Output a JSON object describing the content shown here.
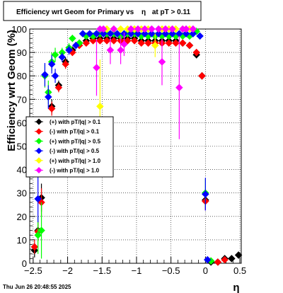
{
  "chart_data": {
    "type": "scatter",
    "title": "Efficiency wrt Geom for Primary vs",
    "title_symbol": "η",
    "title_suffix": "at pT > 0.11",
    "xlabel": "η",
    "ylabel": "Efficiency wrt Geom (%)",
    "xlim": [
      -2.55,
      0.52
    ],
    "ylim": [
      0,
      100
    ],
    "xticks": [
      {
        "value": -2.5,
        "label": "−2.5"
      },
      {
        "value": -2.0,
        "label": "−2"
      },
      {
        "value": -1.5,
        "label": "−1.5"
      },
      {
        "value": -1.0,
        "label": "−1"
      },
      {
        "value": -0.5,
        "label": "−0.5"
      },
      {
        "value": 0.0,
        "label": "0"
      },
      {
        "value": 0.5,
        "label": "0.5"
      }
    ],
    "yticks": [
      0,
      10,
      20,
      30,
      40,
      50,
      60,
      70,
      80,
      90,
      100
    ],
    "grid": true,
    "legend_position": "left-middle",
    "timestamp": "Thu Jun 26 20:48:55 2025",
    "series": [
      {
        "name": "(+) with pT/|q| > 0.1",
        "color": "#000000",
        "points": [
          {
            "x": -2.48,
            "y": 5.5,
            "err": 3
          },
          {
            "x": -2.43,
            "y": 14,
            "err": 4
          },
          {
            "x": -2.38,
            "y": 28,
            "err": 6
          },
          {
            "x": -2.23,
            "y": 67,
            "err": 3
          },
          {
            "x": -2.13,
            "y": 76,
            "err": 2
          },
          {
            "x": -2.03,
            "y": 86,
            "err": 2
          },
          {
            "x": -1.93,
            "y": 91,
            "err": 1.5
          },
          {
            "x": -1.83,
            "y": 94,
            "err": 1
          },
          {
            "x": -1.73,
            "y": 95,
            "err": 1
          },
          {
            "x": -1.63,
            "y": 96,
            "err": 1
          },
          {
            "x": -1.53,
            "y": 96,
            "err": 1
          },
          {
            "x": -1.43,
            "y": 96,
            "err": 1
          },
          {
            "x": -1.33,
            "y": 96,
            "err": 1
          },
          {
            "x": -1.23,
            "y": 96,
            "err": 1
          },
          {
            "x": -1.13,
            "y": 96,
            "err": 1
          },
          {
            "x": -1.03,
            "y": 96,
            "err": 1
          },
          {
            "x": -0.93,
            "y": 95,
            "err": 1
          },
          {
            "x": -0.83,
            "y": 95,
            "err": 1
          },
          {
            "x": -0.73,
            "y": 95,
            "err": 1
          },
          {
            "x": -0.63,
            "y": 95,
            "err": 1
          },
          {
            "x": -0.53,
            "y": 95,
            "err": 1
          },
          {
            "x": -0.43,
            "y": 95,
            "err": 1
          },
          {
            "x": -0.33,
            "y": 94,
            "err": 1
          },
          {
            "x": -0.23,
            "y": 93,
            "err": 1
          },
          {
            "x": -0.13,
            "y": 89,
            "err": 1.5
          },
          {
            "x": -0.05,
            "y": 80,
            "err": 1.5
          },
          {
            "x": 0.0,
            "y": 27,
            "err": 4
          },
          {
            "x": 0.08,
            "y": 0.5,
            "err": 0.5
          },
          {
            "x": 0.18,
            "y": 0.5,
            "err": 0.5
          },
          {
            "x": 0.28,
            "y": 2,
            "err": 1
          },
          {
            "x": 0.38,
            "y": 2,
            "err": 1
          },
          {
            "x": 0.48,
            "y": 3.5,
            "err": 1.5
          }
        ]
      },
      {
        "name": "(-) with pT/|q| > 0.1",
        "color": "#ff0000",
        "points": [
          {
            "x": -2.48,
            "y": 7,
            "err": 3
          },
          {
            "x": -2.43,
            "y": 13.5,
            "err": 4
          },
          {
            "x": -2.38,
            "y": 26,
            "err": 6
          },
          {
            "x": -2.23,
            "y": 66,
            "err": 3
          },
          {
            "x": -2.13,
            "y": 75,
            "err": 2
          },
          {
            "x": -2.03,
            "y": 85,
            "err": 2
          },
          {
            "x": -1.93,
            "y": 90,
            "err": 1.5
          },
          {
            "x": -1.83,
            "y": 93,
            "err": 1
          },
          {
            "x": -1.73,
            "y": 94,
            "err": 1
          },
          {
            "x": -1.63,
            "y": 95,
            "err": 1
          },
          {
            "x": -1.53,
            "y": 95,
            "err": 1
          },
          {
            "x": -1.43,
            "y": 95,
            "err": 1
          },
          {
            "x": -1.33,
            "y": 95,
            "err": 1
          },
          {
            "x": -1.23,
            "y": 95,
            "err": 1
          },
          {
            "x": -1.13,
            "y": 95,
            "err": 1
          },
          {
            "x": -1.03,
            "y": 95,
            "err": 1
          },
          {
            "x": -0.93,
            "y": 94,
            "err": 1
          },
          {
            "x": -0.83,
            "y": 94,
            "err": 1
          },
          {
            "x": -0.73,
            "y": 94,
            "err": 1
          },
          {
            "x": -0.63,
            "y": 94,
            "err": 1
          },
          {
            "x": -0.53,
            "y": 94,
            "err": 1
          },
          {
            "x": -0.43,
            "y": 94,
            "err": 1
          },
          {
            "x": -0.33,
            "y": 94,
            "err": 1
          },
          {
            "x": -0.23,
            "y": 93,
            "err": 1
          },
          {
            "x": -0.13,
            "y": 90,
            "err": 1.5
          },
          {
            "x": -0.05,
            "y": 80,
            "err": 1.5
          },
          {
            "x": 0.0,
            "y": 26.5,
            "err": 4
          },
          {
            "x": 0.08,
            "y": 1,
            "err": 0.5
          },
          {
            "x": 0.18,
            "y": 0.5,
            "err": 0.5
          },
          {
            "x": 0.28,
            "y": 1.5,
            "err": 1
          }
        ]
      },
      {
        "name": "(+) with pT/|q| > 0.5",
        "color": "#00ff00",
        "points": [
          {
            "x": -2.43,
            "y": 12,
            "err": 8
          },
          {
            "x": -2.38,
            "y": 14,
            "err": 12
          },
          {
            "x": -2.33,
            "y": 80,
            "err": 5
          },
          {
            "x": -2.28,
            "y": 73,
            "err": 5
          },
          {
            "x": -2.23,
            "y": 86,
            "err": 4
          },
          {
            "x": -2.18,
            "y": 89,
            "err": 3
          },
          {
            "x": -2.08,
            "y": 90,
            "err": 2
          },
          {
            "x": -1.98,
            "y": 92,
            "err": 2
          },
          {
            "x": -1.93,
            "y": 96,
            "err": 1.5
          },
          {
            "x": -1.83,
            "y": 94,
            "err": 1.5
          },
          {
            "x": -1.73,
            "y": 97,
            "err": 1
          },
          {
            "x": -1.63,
            "y": 97,
            "err": 1
          },
          {
            "x": -1.53,
            "y": 98,
            "err": 1
          },
          {
            "x": -1.43,
            "y": 98,
            "err": 1
          },
          {
            "x": -1.33,
            "y": 98,
            "err": 1
          },
          {
            "x": -1.23,
            "y": 97,
            "err": 1
          },
          {
            "x": -1.13,
            "y": 98,
            "err": 1
          },
          {
            "x": -1.03,
            "y": 98,
            "err": 1
          },
          {
            "x": -0.93,
            "y": 97,
            "err": 1
          },
          {
            "x": -0.83,
            "y": 97,
            "err": 1
          },
          {
            "x": -0.73,
            "y": 97,
            "err": 1
          },
          {
            "x": -0.63,
            "y": 97,
            "err": 1
          },
          {
            "x": -0.53,
            "y": 97,
            "err": 1
          },
          {
            "x": -0.43,
            "y": 97,
            "err": 1
          },
          {
            "x": -0.33,
            "y": 97,
            "err": 1
          },
          {
            "x": -0.23,
            "y": 97,
            "err": 1
          },
          {
            "x": -0.13,
            "y": 99,
            "err": 1
          },
          {
            "x": 0.0,
            "y": 30,
            "err": 6
          },
          {
            "x": 0.08,
            "y": 1,
            "err": 1
          }
        ]
      },
      {
        "name": "(-) with pT/|q| > 0.5",
        "color": "#0000ff",
        "points": [
          {
            "x": -2.43,
            "y": 27.5,
            "err": 10
          },
          {
            "x": -2.33,
            "y": 80.5,
            "err": 5
          },
          {
            "x": -2.28,
            "y": 71,
            "err": 5
          },
          {
            "x": -2.23,
            "y": 85,
            "err": 4
          },
          {
            "x": -2.18,
            "y": 80,
            "err": 3
          },
          {
            "x": -2.08,
            "y": 88,
            "err": 2
          },
          {
            "x": -1.98,
            "y": 91,
            "err": 2
          },
          {
            "x": -1.88,
            "y": 93,
            "err": 1.5
          },
          {
            "x": -1.78,
            "y": 98,
            "err": 1
          },
          {
            "x": -1.68,
            "y": 98,
            "err": 1
          },
          {
            "x": -1.58,
            "y": 98,
            "err": 1
          },
          {
            "x": -1.48,
            "y": 98,
            "err": 1
          },
          {
            "x": -1.38,
            "y": 98,
            "err": 1
          },
          {
            "x": -1.28,
            "y": 98,
            "err": 1
          },
          {
            "x": -1.18,
            "y": 98,
            "err": 1
          },
          {
            "x": -1.08,
            "y": 98,
            "err": 1
          },
          {
            "x": -0.98,
            "y": 98,
            "err": 1
          },
          {
            "x": -0.88,
            "y": 98,
            "err": 1
          },
          {
            "x": -0.78,
            "y": 98,
            "err": 1
          },
          {
            "x": -0.68,
            "y": 98,
            "err": 1
          },
          {
            "x": -0.58,
            "y": 98,
            "err": 1
          },
          {
            "x": -0.48,
            "y": 98,
            "err": 1
          },
          {
            "x": -0.38,
            "y": 98,
            "err": 1
          },
          {
            "x": -0.28,
            "y": 98,
            "err": 1
          },
          {
            "x": -0.18,
            "y": 98,
            "err": 1
          },
          {
            "x": -0.08,
            "y": 97,
            "err": 1
          },
          {
            "x": 0.0,
            "y": 29.5,
            "err": 7
          },
          {
            "x": 0.03,
            "y": 1.5,
            "err": 1
          }
        ]
      },
      {
        "name": "(+) with pT/|q| > 1.0",
        "color": "#ffff00",
        "points": [
          {
            "x": -1.53,
            "y": 67,
            "err": 20
          },
          {
            "x": -1.43,
            "y": 100,
            "err": 1
          },
          {
            "x": -1.33,
            "y": 100,
            "err": 1
          },
          {
            "x": -1.23,
            "y": 100,
            "err": 1
          },
          {
            "x": -1.13,
            "y": 100,
            "err": 1
          },
          {
            "x": -1.03,
            "y": 100,
            "err": 1
          },
          {
            "x": -0.93,
            "y": 100,
            "err": 1
          },
          {
            "x": -0.83,
            "y": 100,
            "err": 1
          },
          {
            "x": -0.73,
            "y": 93,
            "err": 5
          },
          {
            "x": -0.63,
            "y": 100,
            "err": 1
          },
          {
            "x": -0.53,
            "y": 100,
            "err": 1
          },
          {
            "x": -0.43,
            "y": 100,
            "err": 1
          },
          {
            "x": -0.33,
            "y": 100,
            "err": 1
          },
          {
            "x": -0.23,
            "y": 100,
            "err": 1
          }
        ]
      },
      {
        "name": "(-) with pT/|q| > 1.0",
        "color": "#ff00ff",
        "points": [
          {
            "x": -1.58,
            "y": 83.5,
            "err": 12
          },
          {
            "x": -1.53,
            "y": 100,
            "err": 1
          },
          {
            "x": -1.48,
            "y": 100,
            "err": 1
          },
          {
            "x": -1.38,
            "y": 91,
            "err": 6
          },
          {
            "x": -1.33,
            "y": 100,
            "err": 1
          },
          {
            "x": -1.23,
            "y": 91,
            "err": 6
          },
          {
            "x": -1.18,
            "y": 93.5,
            "err": 5
          },
          {
            "x": -1.08,
            "y": 100,
            "err": 1
          },
          {
            "x": -0.98,
            "y": 100,
            "err": 1
          },
          {
            "x": -0.88,
            "y": 100,
            "err": 1
          },
          {
            "x": -0.78,
            "y": 100,
            "err": 1
          },
          {
            "x": -0.68,
            "y": 100,
            "err": 1
          },
          {
            "x": -0.63,
            "y": 86,
            "err": 10
          },
          {
            "x": -0.58,
            "y": 100,
            "err": 1
          },
          {
            "x": -0.48,
            "y": 100,
            "err": 1
          },
          {
            "x": -0.38,
            "y": 75,
            "err": 22
          },
          {
            "x": -0.33,
            "y": 100,
            "err": 1
          },
          {
            "x": -0.28,
            "y": 100,
            "err": 1
          },
          {
            "x": -0.18,
            "y": 100,
            "err": 1
          }
        ]
      }
    ]
  }
}
